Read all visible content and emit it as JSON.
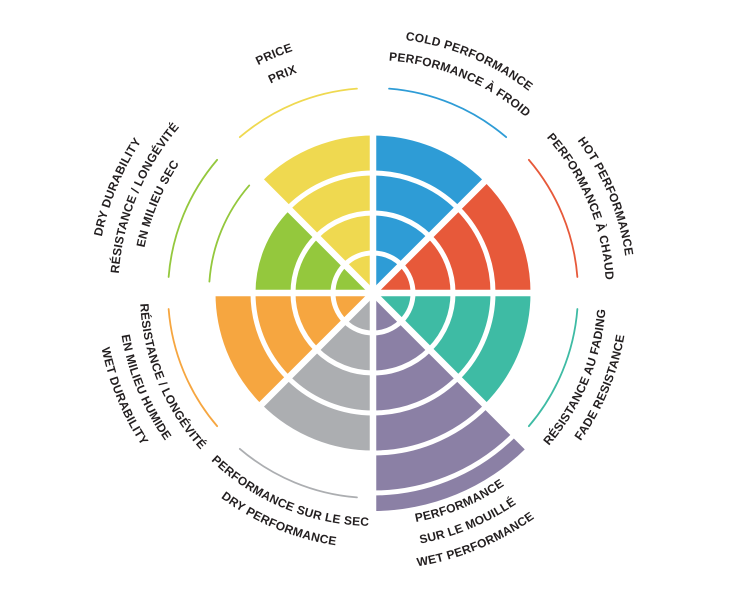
{
  "chart_data": {
    "type": "polar-sector-wheel",
    "title": "",
    "scale_max": 5,
    "rings": 5,
    "background": "#ffffff",
    "divider_color": "#ffffff",
    "text_color": "#231f20",
    "legend_position": "around-wheel",
    "grid": "concentric-rings",
    "sectors": [
      {
        "id": "cold-performance",
        "labels": [
          "COLD PERFORMANCE",
          "PERFORMANCE À FROID"
        ],
        "value": 4,
        "color": "#2E9CD6",
        "guide_arc": true
      },
      {
        "id": "hot-performance",
        "labels": [
          "HOT PERFORMANCE",
          "PERFORMANCE À CHAUD"
        ],
        "value": 4,
        "color": "#E7593A",
        "guide_arc": true
      },
      {
        "id": "fade-resistance",
        "labels": [
          "RÉSISTANCE AU FADING",
          "FADE RESISTANCE"
        ],
        "value": 4,
        "color": "#3EBBA4",
        "guide_arc": true
      },
      {
        "id": "wet-performance",
        "labels": [
          "PERFORMANCE",
          "SUR LE MOUILLÉ",
          "WET PERFORMANCE"
        ],
        "value": 5.45,
        "color": "#8B80A5",
        "guide_arc": false
      },
      {
        "id": "dry-performance",
        "labels": [
          "PERFORMANCE SUR LE SEC",
          "DRY PERFORMANCE"
        ],
        "value": 4,
        "color": "#ACAEB1",
        "guide_arc": true
      },
      {
        "id": "wet-durability",
        "labels": [
          "RÉSISTANCE / LONGÉVITÉ",
          "EN MILIEU HUMIDE",
          "WET DURABILITY"
        ],
        "value": 4,
        "color": "#F6A640",
        "guide_arc": true
      },
      {
        "id": "dry-durability",
        "labels": [
          "DRY DURABILITY",
          "RÉSISTANCE / LONGÉVITÉ",
          "EN MILIEU SEC"
        ],
        "value": 3,
        "color": "#94C83D",
        "guide_arc": true,
        "outline_ring": 4
      },
      {
        "id": "price",
        "labels": [
          "PRICE",
          "PRIX"
        ],
        "value": 4,
        "color": "#EFD950",
        "guide_arc": true
      }
    ]
  }
}
